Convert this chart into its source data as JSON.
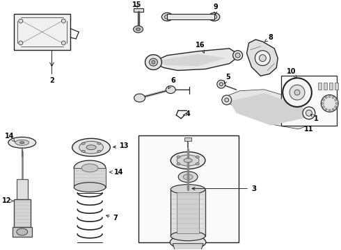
{
  "bg_color": "#ffffff",
  "fig_width": 4.9,
  "fig_height": 3.6,
  "dpi": 100
}
